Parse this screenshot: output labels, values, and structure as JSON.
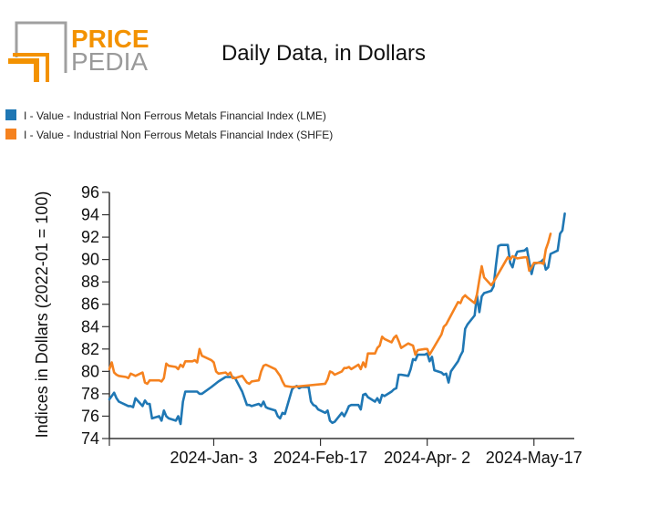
{
  "logo": {
    "word1": "PRICE",
    "word2": "PEDIA",
    "word1_color": "#f39200",
    "word2_color": "#9a9a9a",
    "mark_gray": "#a0a0a0",
    "mark_orange": "#f39200"
  },
  "chart_data": {
    "type": "line",
    "title": "Daily Data, in Dollars",
    "xlabel": "",
    "ylabel": "Indices in Dollars (2022-01 = 100)",
    "ylim": [
      74,
      96
    ],
    "yticks": [
      74,
      76,
      78,
      80,
      82,
      84,
      86,
      88,
      90,
      92,
      94,
      96
    ],
    "xlim": [
      "2023-11-20",
      "2024-06-03"
    ],
    "xticks": [
      {
        "date": "2023-11-20",
        "label": ""
      },
      {
        "date": "2024-01-03",
        "label": "2024-Jan- 3"
      },
      {
        "date": "2024-02-17",
        "label": "2024-Feb-17"
      },
      {
        "date": "2024-04-02",
        "label": "2024-Apr- 2"
      },
      {
        "date": "2024-05-17",
        "label": "2024-May-17"
      }
    ],
    "grid": false,
    "legend_position": "top-left",
    "series": [
      {
        "name": "I - Value - Industrial Non Ferrous Metals Financial Index (LME)",
        "color": "#1f77b4",
        "points": [
          [
            "2023-11-20",
            77.5
          ],
          [
            "2023-11-21",
            77.8
          ],
          [
            "2023-11-22",
            78.1
          ],
          [
            "2023-11-23",
            77.6
          ],
          [
            "2023-11-24",
            77.3
          ],
          [
            "2023-11-27",
            77.0
          ],
          [
            "2023-11-28",
            76.9
          ],
          [
            "2023-11-29",
            76.9
          ],
          [
            "2023-11-30",
            76.8
          ],
          [
            "2023-12-01",
            77.6
          ],
          [
            "2023-12-04",
            76.9
          ],
          [
            "2023-12-05",
            77.4
          ],
          [
            "2023-12-06",
            77.1
          ],
          [
            "2023-12-07",
            77.1
          ],
          [
            "2023-12-08",
            75.8
          ],
          [
            "2023-12-11",
            76.0
          ],
          [
            "2023-12-12",
            75.6
          ],
          [
            "2023-12-13",
            76.5
          ],
          [
            "2023-12-14",
            76.0
          ],
          [
            "2023-12-15",
            75.8
          ],
          [
            "2023-12-18",
            75.6
          ],
          [
            "2023-12-19",
            76.0
          ],
          [
            "2023-12-20",
            75.3
          ],
          [
            "2023-12-21",
            77.3
          ],
          [
            "2023-12-22",
            78.2
          ],
          [
            "2023-12-27",
            78.2
          ],
          [
            "2023-12-28",
            78.0
          ],
          [
            "2023-12-29",
            78.0
          ],
          [
            "2024-01-02",
            78.6
          ],
          [
            "2024-01-05",
            79.1
          ],
          [
            "2024-01-08",
            79.5
          ],
          [
            "2024-01-09",
            79.5
          ],
          [
            "2024-01-10",
            79.5
          ],
          [
            "2024-01-11",
            79.5
          ],
          [
            "2024-01-12",
            79.4
          ],
          [
            "2024-01-15",
            78.2
          ],
          [
            "2024-01-16",
            77.6
          ],
          [
            "2024-01-17",
            77.0
          ],
          [
            "2024-01-18",
            77.0
          ],
          [
            "2024-01-19",
            76.9
          ],
          [
            "2024-01-22",
            77.1
          ],
          [
            "2024-01-23",
            76.9
          ],
          [
            "2024-01-24",
            77.3
          ],
          [
            "2024-01-25",
            76.8
          ],
          [
            "2024-01-26",
            76.7
          ],
          [
            "2024-01-29",
            76.5
          ],
          [
            "2024-01-30",
            76.0
          ],
          [
            "2024-01-31",
            75.8
          ],
          [
            "2024-02-01",
            76.3
          ],
          [
            "2024-02-02",
            76.2
          ],
          [
            "2024-02-05",
            78.4
          ],
          [
            "2024-02-06",
            78.6
          ],
          [
            "2024-02-07",
            78.7
          ],
          [
            "2024-02-08",
            78.5
          ],
          [
            "2024-02-09",
            78.6
          ],
          [
            "2024-02-12",
            78.6
          ],
          [
            "2024-02-13",
            77.3
          ],
          [
            "2024-02-14",
            77.0
          ],
          [
            "2024-02-15",
            76.9
          ],
          [
            "2024-02-16",
            76.6
          ],
          [
            "2024-02-19",
            76.3
          ],
          [
            "2024-02-20",
            76.5
          ],
          [
            "2024-02-21",
            75.6
          ],
          [
            "2024-02-22",
            75.4
          ],
          [
            "2024-02-23",
            75.5
          ],
          [
            "2024-02-26",
            76.3
          ],
          [
            "2024-02-27",
            76.0
          ],
          [
            "2024-02-28",
            76.4
          ],
          [
            "2024-02-29",
            76.9
          ],
          [
            "2024-03-01",
            77.0
          ],
          [
            "2024-03-04",
            77.0
          ],
          [
            "2024-03-05",
            76.6
          ],
          [
            "2024-03-06",
            77.9
          ],
          [
            "2024-03-07",
            78.0
          ],
          [
            "2024-03-08",
            77.7
          ],
          [
            "2024-03-11",
            77.3
          ],
          [
            "2024-03-12",
            77.6
          ],
          [
            "2024-03-13",
            77.2
          ],
          [
            "2024-03-14",
            77.9
          ],
          [
            "2024-03-15",
            77.8
          ],
          [
            "2024-03-18",
            78.2
          ],
          [
            "2024-03-19",
            78.4
          ],
          [
            "2024-03-20",
            78.5
          ],
          [
            "2024-03-21",
            79.7
          ],
          [
            "2024-03-22",
            79.7
          ],
          [
            "2024-03-25",
            79.6
          ],
          [
            "2024-03-26",
            80.2
          ],
          [
            "2024-03-27",
            81.1
          ],
          [
            "2024-03-28",
            81.0
          ],
          [
            "2024-03-29",
            81.5
          ],
          [
            "2024-04-01",
            81.5
          ],
          [
            "2024-04-02",
            81.6
          ],
          [
            "2024-04-03",
            80.9
          ],
          [
            "2024-04-04",
            81.3
          ],
          [
            "2024-04-05",
            80.1
          ],
          [
            "2024-04-08",
            79.9
          ],
          [
            "2024-04-09",
            79.7
          ],
          [
            "2024-04-10",
            79.8
          ],
          [
            "2024-04-11",
            79.0
          ],
          [
            "2024-04-12",
            80.0
          ],
          [
            "2024-04-15",
            80.9
          ],
          [
            "2024-04-16",
            81.4
          ],
          [
            "2024-04-17",
            81.8
          ],
          [
            "2024-04-18",
            83.8
          ],
          [
            "2024-04-19",
            84.2
          ],
          [
            "2024-04-22",
            85.0
          ],
          [
            "2024-04-23",
            86.8
          ],
          [
            "2024-04-24",
            85.3
          ],
          [
            "2024-04-25",
            86.7
          ],
          [
            "2024-04-26",
            87.0
          ],
          [
            "2024-04-29",
            87.2
          ],
          [
            "2024-04-30",
            87.6
          ],
          [
            "2024-05-01",
            89.5
          ],
          [
            "2024-05-02",
            91.2
          ],
          [
            "2024-05-03",
            91.3
          ],
          [
            "2024-05-06",
            91.3
          ],
          [
            "2024-05-07",
            89.7
          ],
          [
            "2024-05-08",
            89.3
          ],
          [
            "2024-05-09",
            90.2
          ],
          [
            "2024-05-10",
            90.7
          ],
          [
            "2024-05-13",
            90.8
          ],
          [
            "2024-05-14",
            91.0
          ],
          [
            "2024-05-15",
            89.8
          ],
          [
            "2024-05-16",
            88.7
          ],
          [
            "2024-05-17",
            89.6
          ],
          [
            "2024-05-20",
            89.8
          ],
          [
            "2024-05-21",
            90.0
          ],
          [
            "2024-05-22",
            89.1
          ],
          [
            "2024-05-23",
            89.3
          ],
          [
            "2024-05-24",
            90.5
          ],
          [
            "2024-05-27",
            90.8
          ],
          [
            "2024-05-28",
            92.3
          ],
          [
            "2024-05-29",
            92.6
          ],
          [
            "2024-05-30",
            94.1
          ]
        ]
      },
      {
        "name": "I - Value - Industrial Non Ferrous Metals Financial Index (SHFE)",
        "color": "#f5821f",
        "points": [
          [
            "2023-11-20",
            80.2
          ],
          [
            "2023-11-21",
            80.8
          ],
          [
            "2023-11-22",
            79.9
          ],
          [
            "2023-11-23",
            79.7
          ],
          [
            "2023-11-24",
            79.6
          ],
          [
            "2023-11-27",
            79.5
          ],
          [
            "2023-11-28",
            79.4
          ],
          [
            "2023-11-29",
            79.8
          ],
          [
            "2023-11-30",
            79.7
          ],
          [
            "2023-12-01",
            79.6
          ],
          [
            "2023-12-04",
            79.9
          ],
          [
            "2023-12-05",
            79.0
          ],
          [
            "2023-12-06",
            78.9
          ],
          [
            "2023-12-07",
            79.2
          ],
          [
            "2023-12-08",
            79.2
          ],
          [
            "2023-12-11",
            79.2
          ],
          [
            "2023-12-12",
            79.1
          ],
          [
            "2023-12-13",
            79.4
          ],
          [
            "2023-12-14",
            80.7
          ],
          [
            "2023-12-15",
            80.5
          ],
          [
            "2023-12-18",
            80.4
          ],
          [
            "2023-12-19",
            80.2
          ],
          [
            "2023-12-20",
            80.6
          ],
          [
            "2023-12-21",
            80.4
          ],
          [
            "2023-12-22",
            80.9
          ],
          [
            "2023-12-25",
            80.9
          ],
          [
            "2023-12-26",
            81.0
          ],
          [
            "2023-12-27",
            80.8
          ],
          [
            "2023-12-28",
            82.0
          ],
          [
            "2023-12-29",
            81.4
          ],
          [
            "2024-01-02",
            81.0
          ],
          [
            "2024-01-03",
            80.8
          ],
          [
            "2024-01-04",
            80.0
          ],
          [
            "2024-01-05",
            79.8
          ],
          [
            "2024-01-08",
            79.9
          ],
          [
            "2024-01-09",
            79.7
          ],
          [
            "2024-01-10",
            79.9
          ],
          [
            "2024-01-11",
            79.4
          ],
          [
            "2024-01-12",
            79.4
          ],
          [
            "2024-01-15",
            79.6
          ],
          [
            "2024-01-16",
            79.3
          ],
          [
            "2024-01-17",
            79.0
          ],
          [
            "2024-01-18",
            78.9
          ],
          [
            "2024-01-19",
            79.1
          ],
          [
            "2024-01-22",
            79.2
          ],
          [
            "2024-01-23",
            80.0
          ],
          [
            "2024-01-24",
            80.5
          ],
          [
            "2024-01-25",
            80.6
          ],
          [
            "2024-01-26",
            80.5
          ],
          [
            "2024-01-29",
            80.2
          ],
          [
            "2024-01-30",
            79.9
          ],
          [
            "2024-01-31",
            79.6
          ],
          [
            "2024-02-01",
            79.1
          ],
          [
            "2024-02-02",
            78.7
          ],
          [
            "2024-02-05",
            78.6
          ],
          [
            "2024-02-19",
            78.9
          ],
          [
            "2024-02-20",
            79.3
          ],
          [
            "2024-02-21",
            80.0
          ],
          [
            "2024-02-22",
            79.9
          ],
          [
            "2024-02-23",
            79.7
          ],
          [
            "2024-02-26",
            80.0
          ],
          [
            "2024-02-27",
            80.3
          ],
          [
            "2024-02-28",
            80.3
          ],
          [
            "2024-02-29",
            80.4
          ],
          [
            "2024-03-01",
            80.2
          ],
          [
            "2024-03-04",
            80.6
          ],
          [
            "2024-03-05",
            80.2
          ],
          [
            "2024-03-06",
            80.8
          ],
          [
            "2024-03-07",
            80.4
          ],
          [
            "2024-03-08",
            81.6
          ],
          [
            "2024-03-11",
            81.6
          ],
          [
            "2024-03-12",
            82.1
          ],
          [
            "2024-03-13",
            82.3
          ],
          [
            "2024-03-14",
            83.1
          ],
          [
            "2024-03-15",
            82.9
          ],
          [
            "2024-03-18",
            82.6
          ],
          [
            "2024-03-19",
            83.0
          ],
          [
            "2024-03-20",
            83.2
          ],
          [
            "2024-03-21",
            82.7
          ],
          [
            "2024-03-22",
            82.1
          ],
          [
            "2024-03-25",
            82.5
          ],
          [
            "2024-03-26",
            82.4
          ],
          [
            "2024-03-27",
            82.3
          ],
          [
            "2024-03-28",
            81.5
          ],
          [
            "2024-03-29",
            81.9
          ],
          [
            "2024-04-01",
            82.0
          ],
          [
            "2024-04-02",
            82.0
          ],
          [
            "2024-04-03",
            81.5
          ],
          [
            "2024-04-08",
            83.3
          ],
          [
            "2024-04-09",
            84.0
          ],
          [
            "2024-04-10",
            84.2
          ],
          [
            "2024-04-11",
            84.6
          ],
          [
            "2024-04-12",
            85.0
          ],
          [
            "2024-04-15",
            86.2
          ],
          [
            "2024-04-16",
            86.1
          ],
          [
            "2024-04-17",
            86.6
          ],
          [
            "2024-04-18",
            86.8
          ],
          [
            "2024-04-19",
            86.6
          ],
          [
            "2024-04-22",
            86.1
          ],
          [
            "2024-04-23",
            86.9
          ],
          [
            "2024-04-24",
            88.2
          ],
          [
            "2024-04-25",
            89.4
          ],
          [
            "2024-04-26",
            88.4
          ],
          [
            "2024-04-29",
            87.7
          ],
          [
            "2024-04-30",
            88.0
          ],
          [
            "2024-05-06",
            90.2
          ],
          [
            "2024-05-07",
            90.0
          ],
          [
            "2024-05-08",
            90.3
          ],
          [
            "2024-05-09",
            90.2
          ],
          [
            "2024-05-10",
            90.1
          ],
          [
            "2024-05-13",
            90.2
          ],
          [
            "2024-05-14",
            90.2
          ],
          [
            "2024-05-15",
            89.0
          ],
          [
            "2024-05-16",
            89.3
          ],
          [
            "2024-05-17",
            89.7
          ],
          [
            "2024-05-20",
            89.7
          ],
          [
            "2024-05-21",
            89.6
          ],
          [
            "2024-05-22",
            90.9
          ],
          [
            "2024-05-23",
            91.5
          ],
          [
            "2024-05-24",
            92.3
          ]
        ]
      }
    ]
  }
}
